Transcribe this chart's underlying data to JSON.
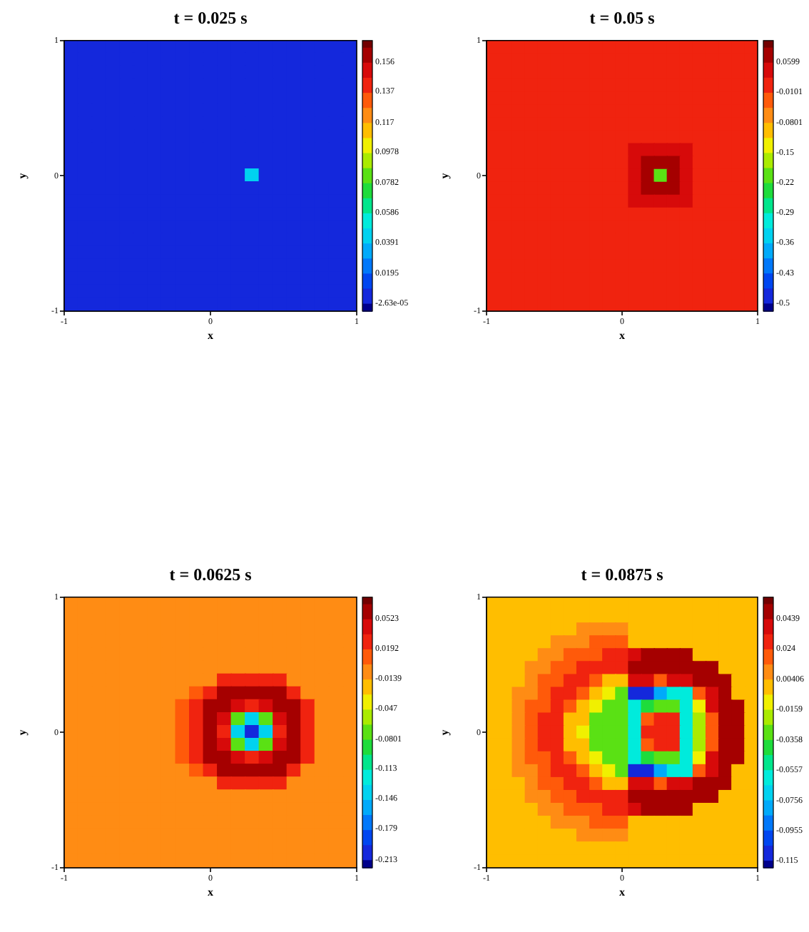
{
  "chart_data": [
    {
      "type": "heatmap",
      "title": "t = 0.025 s",
      "xlabel": "x",
      "ylabel": "y",
      "xlim": [
        -1,
        1
      ],
      "ylim": [
        -1,
        1
      ],
      "xticks": [
        -1,
        0,
        1
      ],
      "yticks": [
        -1,
        0,
        1
      ],
      "clim": [
        -0.0052,
        0.17
      ],
      "cticks": [
        {
          "value": -2.63e-05,
          "label": "-2.63e-05"
        },
        0.0195,
        0.0391,
        0.0586,
        0.0782,
        0.0978,
        0.117,
        0.137,
        0.156
      ],
      "cells": [
        [
          0.005,
          0.005,
          0.005,
          0.005,
          0.005,
          0.005,
          0.005,
          0.005,
          0.005,
          0.005,
          0.005,
          0.005,
          0.005,
          0.005,
          0.005,
          0.005,
          0.005,
          0.005,
          0.005,
          0.005,
          0.005
        ],
        [
          0.005,
          0.005,
          0.005,
          0.005,
          0.005,
          0.005,
          0.005,
          0.005,
          0.005,
          0.005,
          0.005,
          0.005,
          0.005,
          0.005,
          0.005,
          0.005,
          0.005,
          0.005,
          0.005,
          0.005,
          0.005
        ],
        [
          0.005,
          0.005,
          0.005,
          0.005,
          0.005,
          0.005,
          0.005,
          0.005,
          0.005,
          0.005,
          0.005,
          0.005,
          0.005,
          0.005,
          0.005,
          0.005,
          0.005,
          0.005,
          0.005,
          0.005,
          0.005
        ],
        [
          0.005,
          0.005,
          0.005,
          0.005,
          0.005,
          0.005,
          0.005,
          0.005,
          0.005,
          0.005,
          0.005,
          0.005,
          0.005,
          0.005,
          0.005,
          0.005,
          0.005,
          0.005,
          0.005,
          0.005,
          0.005
        ],
        [
          0.005,
          0.005,
          0.005,
          0.005,
          0.005,
          0.005,
          0.005,
          0.005,
          0.005,
          0.005,
          0.005,
          0.005,
          0.005,
          0.005,
          0.005,
          0.005,
          0.005,
          0.005,
          0.005,
          0.005,
          0.005
        ],
        [
          0.005,
          0.005,
          0.005,
          0.005,
          0.005,
          0.005,
          0.005,
          0.005,
          0.005,
          0.005,
          0.005,
          0.005,
          0.005,
          0.005,
          0.005,
          0.005,
          0.005,
          0.005,
          0.005,
          0.005,
          0.005
        ],
        [
          0.005,
          0.005,
          0.005,
          0.005,
          0.005,
          0.005,
          0.005,
          0.005,
          0.005,
          0.005,
          0.005,
          0.005,
          0.005,
          0.005,
          0.005,
          0.005,
          0.005,
          0.005,
          0.005,
          0.005,
          0.005
        ],
        [
          0.005,
          0.005,
          0.005,
          0.005,
          0.005,
          0.005,
          0.005,
          0.005,
          0.005,
          0.005,
          0.005,
          0.005,
          0.005,
          0.005,
          0.005,
          0.005,
          0.005,
          0.005,
          0.005,
          0.005,
          0.005
        ],
        [
          0.005,
          0.005,
          0.005,
          0.005,
          0.005,
          0.005,
          0.005,
          0.005,
          0.005,
          0.005,
          0.005,
          0.005,
          0.005,
          0.005,
          0.005,
          0.005,
          0.005,
          0.005,
          0.005,
          0.005,
          0.005
        ],
        [
          0.005,
          0.005,
          0.005,
          0.005,
          0.005,
          0.005,
          0.005,
          0.005,
          0.005,
          0.005,
          0.005,
          0.005,
          0.005,
          0.005,
          0.005,
          0.005,
          0.005,
          0.005,
          0.005,
          0.005,
          0.005
        ],
        [
          0.005,
          0.005,
          0.005,
          0.005,
          0.005,
          0.005,
          0.005,
          0.005,
          0.005,
          0.005,
          0.005,
          0.005,
          0.005,
          0.044,
          0.005,
          0.005,
          0.005,
          0.005,
          0.005,
          0.005,
          0.005
        ],
        [
          0.005,
          0.005,
          0.005,
          0.005,
          0.005,
          0.005,
          0.005,
          0.005,
          0.005,
          0.005,
          0.005,
          0.005,
          0.005,
          0.005,
          0.005,
          0.005,
          0.005,
          0.005,
          0.005,
          0.005,
          0.005
        ],
        [
          0.005,
          0.005,
          0.005,
          0.005,
          0.005,
          0.005,
          0.005,
          0.005,
          0.005,
          0.005,
          0.005,
          0.005,
          0.005,
          0.005,
          0.005,
          0.005,
          0.005,
          0.005,
          0.005,
          0.005,
          0.005
        ],
        [
          0.005,
          0.005,
          0.005,
          0.005,
          0.005,
          0.005,
          0.005,
          0.005,
          0.005,
          0.005,
          0.005,
          0.005,
          0.005,
          0.005,
          0.005,
          0.005,
          0.005,
          0.005,
          0.005,
          0.005,
          0.005
        ],
        [
          0.005,
          0.005,
          0.005,
          0.005,
          0.005,
          0.005,
          0.005,
          0.005,
          0.005,
          0.005,
          0.005,
          0.005,
          0.005,
          0.005,
          0.005,
          0.005,
          0.005,
          0.005,
          0.005,
          0.005,
          0.005
        ],
        [
          0.005,
          0.005,
          0.005,
          0.005,
          0.005,
          0.005,
          0.005,
          0.005,
          0.005,
          0.005,
          0.005,
          0.005,
          0.005,
          0.005,
          0.005,
          0.005,
          0.005,
          0.005,
          0.005,
          0.005,
          0.005
        ],
        [
          0.005,
          0.005,
          0.005,
          0.005,
          0.005,
          0.005,
          0.005,
          0.005,
          0.005,
          0.005,
          0.005,
          0.005,
          0.005,
          0.005,
          0.005,
          0.005,
          0.005,
          0.005,
          0.005,
          0.005,
          0.005
        ],
        [
          0.005,
          0.005,
          0.005,
          0.005,
          0.005,
          0.005,
          0.005,
          0.005,
          0.005,
          0.005,
          0.005,
          0.005,
          0.005,
          0.005,
          0.005,
          0.005,
          0.005,
          0.005,
          0.005,
          0.005,
          0.005
        ],
        [
          0.005,
          0.005,
          0.005,
          0.005,
          0.005,
          0.005,
          0.005,
          0.005,
          0.005,
          0.005,
          0.005,
          0.005,
          0.005,
          0.005,
          0.005,
          0.005,
          0.005,
          0.005,
          0.005,
          0.005,
          0.005
        ],
        [
          0.005,
          0.005,
          0.005,
          0.005,
          0.005,
          0.005,
          0.005,
          0.005,
          0.005,
          0.005,
          0.005,
          0.005,
          0.005,
          0.005,
          0.005,
          0.005,
          0.005,
          0.005,
          0.005,
          0.005,
          0.005
        ],
        [
          0.005,
          0.005,
          0.005,
          0.005,
          0.005,
          0.005,
          0.005,
          0.005,
          0.005,
          0.005,
          0.005,
          0.005,
          0.005,
          0.005,
          0.005,
          0.005,
          0.005,
          0.005,
          0.005,
          0.005,
          0.005
        ]
      ]
    },
    {
      "type": "heatmap",
      "title": "t = 0.05 s",
      "xlabel": "x",
      "ylabel": "y",
      "xlim": [
        -1,
        1
      ],
      "ylim": [
        -1,
        1
      ],
      "xticks": [
        -1,
        0,
        1
      ],
      "yticks": [
        -1,
        0,
        1
      ],
      "clim": [
        -0.519,
        0.11
      ],
      "cticks": [
        -0.5,
        -0.43,
        -0.36,
        -0.29,
        -0.22,
        -0.15,
        -0.0801,
        -0.0101,
        0.0599
      ],
      "cells": [
        [
          0.005,
          0.005,
          0.005,
          0.005,
          0.005,
          0.005,
          0.005,
          0.005,
          0.005,
          0.005,
          0.005,
          0.005,
          0.005,
          0.005,
          0.005,
          0.005,
          0.005,
          0.005,
          0.005,
          0.005,
          0.005
        ],
        [
          0.005,
          0.005,
          0.005,
          0.005,
          0.005,
          0.005,
          0.005,
          0.005,
          0.005,
          0.005,
          0.005,
          0.005,
          0.005,
          0.005,
          0.005,
          0.005,
          0.005,
          0.005,
          0.005,
          0.005,
          0.005
        ],
        [
          0.005,
          0.005,
          0.005,
          0.005,
          0.005,
          0.005,
          0.005,
          0.005,
          0.005,
          0.005,
          0.005,
          0.005,
          0.005,
          0.005,
          0.005,
          0.005,
          0.005,
          0.005,
          0.005,
          0.005,
          0.005
        ],
        [
          0.005,
          0.005,
          0.005,
          0.005,
          0.005,
          0.005,
          0.005,
          0.005,
          0.005,
          0.005,
          0.005,
          0.005,
          0.005,
          0.005,
          0.005,
          0.005,
          0.005,
          0.005,
          0.005,
          0.005,
          0.005
        ],
        [
          0.005,
          0.005,
          0.005,
          0.005,
          0.005,
          0.005,
          0.005,
          0.005,
          0.005,
          0.005,
          0.005,
          0.005,
          0.005,
          0.005,
          0.005,
          0.005,
          0.005,
          0.005,
          0.005,
          0.005,
          0.005
        ],
        [
          0.005,
          0.005,
          0.005,
          0.005,
          0.005,
          0.005,
          0.005,
          0.005,
          0.005,
          0.005,
          0.005,
          0.005,
          0.005,
          0.005,
          0.005,
          0.005,
          0.005,
          0.005,
          0.005,
          0.005,
          0.005
        ],
        [
          0.005,
          0.005,
          0.005,
          0.005,
          0.005,
          0.005,
          0.005,
          0.005,
          0.005,
          0.005,
          0.005,
          0.005,
          0.005,
          0.005,
          0.005,
          0.005,
          0.005,
          0.005,
          0.005,
          0.005,
          0.005
        ],
        [
          0.005,
          0.005,
          0.005,
          0.005,
          0.005,
          0.005,
          0.005,
          0.005,
          0.005,
          0.005,
          0.005,
          0.005,
          0.005,
          0.005,
          0.005,
          0.005,
          0.005,
          0.005,
          0.005,
          0.005,
          0.005
        ],
        [
          0.005,
          0.005,
          0.005,
          0.005,
          0.005,
          0.005,
          0.005,
          0.005,
          0.005,
          0.005,
          0.005,
          0.04,
          0.04,
          0.04,
          0.04,
          0.04,
          0.005,
          0.005,
          0.005,
          0.005,
          0.005
        ],
        [
          0.005,
          0.005,
          0.005,
          0.005,
          0.005,
          0.005,
          0.005,
          0.005,
          0.005,
          0.005,
          0.005,
          0.04,
          0.08,
          0.08,
          0.08,
          0.04,
          0.005,
          0.005,
          0.005,
          0.005,
          0.005
        ],
        [
          0.005,
          0.005,
          0.005,
          0.005,
          0.005,
          0.005,
          0.005,
          0.005,
          0.005,
          0.005,
          0.005,
          0.04,
          0.08,
          -0.2,
          0.08,
          0.04,
          0.005,
          0.005,
          0.005,
          0.005,
          0.005
        ],
        [
          0.005,
          0.005,
          0.005,
          0.005,
          0.005,
          0.005,
          0.005,
          0.005,
          0.005,
          0.005,
          0.005,
          0.04,
          0.08,
          0.08,
          0.08,
          0.04,
          0.005,
          0.005,
          0.005,
          0.005,
          0.005
        ],
        [
          0.005,
          0.005,
          0.005,
          0.005,
          0.005,
          0.005,
          0.005,
          0.005,
          0.005,
          0.005,
          0.005,
          0.04,
          0.04,
          0.04,
          0.04,
          0.04,
          0.005,
          0.005,
          0.005,
          0.005,
          0.005
        ],
        [
          0.005,
          0.005,
          0.005,
          0.005,
          0.005,
          0.005,
          0.005,
          0.005,
          0.005,
          0.005,
          0.005,
          0.005,
          0.005,
          0.005,
          0.005,
          0.005,
          0.005,
          0.005,
          0.005,
          0.005,
          0.005
        ],
        [
          0.005,
          0.005,
          0.005,
          0.005,
          0.005,
          0.005,
          0.005,
          0.005,
          0.005,
          0.005,
          0.005,
          0.005,
          0.005,
          0.005,
          0.005,
          0.005,
          0.005,
          0.005,
          0.005,
          0.005,
          0.005
        ],
        [
          0.005,
          0.005,
          0.005,
          0.005,
          0.005,
          0.005,
          0.005,
          0.005,
          0.005,
          0.005,
          0.005,
          0.005,
          0.005,
          0.005,
          0.005,
          0.005,
          0.005,
          0.005,
          0.005,
          0.005,
          0.005
        ],
        [
          0.005,
          0.005,
          0.005,
          0.005,
          0.005,
          0.005,
          0.005,
          0.005,
          0.005,
          0.005,
          0.005,
          0.005,
          0.005,
          0.005,
          0.005,
          0.005,
          0.005,
          0.005,
          0.005,
          0.005,
          0.005
        ],
        [
          0.005,
          0.005,
          0.005,
          0.005,
          0.005,
          0.005,
          0.005,
          0.005,
          0.005,
          0.005,
          0.005,
          0.005,
          0.005,
          0.005,
          0.005,
          0.005,
          0.005,
          0.005,
          0.005,
          0.005,
          0.005
        ],
        [
          0.005,
          0.005,
          0.005,
          0.005,
          0.005,
          0.005,
          0.005,
          0.005,
          0.005,
          0.005,
          0.005,
          0.005,
          0.005,
          0.005,
          0.005,
          0.005,
          0.005,
          0.005,
          0.005,
          0.005,
          0.005
        ],
        [
          0.005,
          0.005,
          0.005,
          0.005,
          0.005,
          0.005,
          0.005,
          0.005,
          0.005,
          0.005,
          0.005,
          0.005,
          0.005,
          0.005,
          0.005,
          0.005,
          0.005,
          0.005,
          0.005,
          0.005,
          0.005
        ],
        [
          0.005,
          0.005,
          0.005,
          0.005,
          0.005,
          0.005,
          0.005,
          0.005,
          0.005,
          0.005,
          0.005,
          0.005,
          0.005,
          0.005,
          0.005,
          0.005,
          0.005,
          0.005,
          0.005,
          0.005,
          0.005
        ]
      ]
    },
    {
      "type": "heatmap",
      "title": "t = 0.0625 s",
      "xlabel": "x",
      "ylabel": "y",
      "xlim": [
        -1,
        1
      ],
      "ylim": [
        -1,
        1
      ],
      "xticks": [
        -1,
        0,
        1
      ],
      "yticks": [
        -1,
        0,
        1
      ],
      "clim": [
        -0.222,
        0.076
      ],
      "cticks": [
        -0.213,
        -0.179,
        -0.146,
        -0.113,
        -0.0801,
        -0.047,
        -0.0139,
        0.0192,
        0.0523
      ],
      "cells": [
        [
          -0.005,
          -0.005,
          -0.005,
          -0.005,
          -0.005,
          -0.005,
          -0.005,
          -0.005,
          -0.005,
          -0.005,
          -0.005,
          -0.005,
          -0.005,
          -0.005,
          -0.005,
          -0.005,
          -0.005,
          -0.005,
          -0.005,
          -0.005,
          -0.005
        ],
        [
          -0.005,
          -0.005,
          -0.005,
          -0.005,
          -0.005,
          -0.005,
          -0.005,
          -0.005,
          -0.005,
          -0.005,
          -0.005,
          -0.005,
          -0.005,
          -0.005,
          -0.005,
          -0.005,
          -0.005,
          -0.005,
          -0.005,
          -0.005,
          -0.005
        ],
        [
          -0.005,
          -0.005,
          -0.005,
          -0.005,
          -0.005,
          -0.005,
          -0.005,
          -0.005,
          -0.005,
          -0.005,
          -0.005,
          -0.005,
          -0.005,
          -0.005,
          -0.005,
          -0.005,
          -0.005,
          -0.005,
          -0.005,
          -0.005,
          -0.005
        ],
        [
          -0.005,
          -0.005,
          -0.005,
          -0.005,
          -0.005,
          -0.005,
          -0.005,
          -0.005,
          -0.005,
          -0.005,
          -0.005,
          -0.005,
          -0.005,
          -0.005,
          -0.005,
          -0.005,
          -0.005,
          -0.005,
          -0.005,
          -0.005,
          -0.005
        ],
        [
          -0.005,
          -0.005,
          -0.005,
          -0.005,
          -0.005,
          -0.005,
          -0.005,
          -0.005,
          -0.005,
          -0.005,
          -0.005,
          -0.005,
          -0.005,
          -0.005,
          -0.005,
          -0.005,
          -0.005,
          -0.005,
          -0.005,
          -0.005,
          -0.005
        ],
        [
          -0.005,
          -0.005,
          -0.005,
          -0.005,
          -0.005,
          -0.005,
          -0.005,
          -0.005,
          -0.005,
          -0.005,
          -0.005,
          -0.005,
          -0.005,
          -0.005,
          -0.005,
          -0.005,
          -0.005,
          -0.005,
          -0.005,
          -0.005,
          -0.005
        ],
        [
          -0.005,
          -0.005,
          -0.005,
          -0.005,
          -0.005,
          -0.005,
          -0.005,
          -0.005,
          -0.005,
          -0.005,
          -0.005,
          0.03,
          0.03,
          0.03,
          0.03,
          0.03,
          -0.005,
          -0.005,
          -0.005,
          -0.005,
          -0.005
        ],
        [
          -0.005,
          -0.005,
          -0.005,
          -0.005,
          -0.005,
          -0.005,
          -0.005,
          -0.005,
          -0.005,
          0.01,
          0.03,
          0.06,
          0.06,
          0.06,
          0.06,
          0.06,
          0.03,
          -0.005,
          -0.005,
          -0.005,
          -0.005
        ],
        [
          -0.005,
          -0.005,
          -0.005,
          -0.005,
          -0.005,
          -0.005,
          -0.005,
          -0.005,
          0.01,
          0.03,
          0.06,
          0.06,
          0.045,
          0.03,
          0.045,
          0.06,
          0.06,
          0.03,
          -0.005,
          -0.005,
          -0.005
        ],
        [
          -0.005,
          -0.005,
          -0.005,
          -0.005,
          -0.005,
          -0.005,
          -0.005,
          -0.005,
          0.01,
          0.03,
          0.06,
          0.045,
          -0.07,
          -0.14,
          -0.07,
          0.045,
          0.06,
          0.03,
          -0.005,
          -0.005,
          -0.005
        ],
        [
          -0.005,
          -0.005,
          -0.005,
          -0.005,
          -0.005,
          -0.005,
          -0.005,
          -0.005,
          0.01,
          0.03,
          0.06,
          0.03,
          -0.14,
          -0.2,
          -0.14,
          0.03,
          0.06,
          0.03,
          -0.005,
          -0.005,
          -0.005
        ],
        [
          -0.005,
          -0.005,
          -0.005,
          -0.005,
          -0.005,
          -0.005,
          -0.005,
          -0.005,
          0.01,
          0.03,
          0.06,
          0.045,
          -0.07,
          -0.14,
          -0.07,
          0.045,
          0.06,
          0.03,
          -0.005,
          -0.005,
          -0.005
        ],
        [
          -0.005,
          -0.005,
          -0.005,
          -0.005,
          -0.005,
          -0.005,
          -0.005,
          -0.005,
          0.01,
          0.03,
          0.06,
          0.06,
          0.045,
          0.03,
          0.045,
          0.06,
          0.06,
          0.03,
          -0.005,
          -0.005,
          -0.005
        ],
        [
          -0.005,
          -0.005,
          -0.005,
          -0.005,
          -0.005,
          -0.005,
          -0.005,
          -0.005,
          -0.005,
          0.01,
          0.03,
          0.06,
          0.06,
          0.06,
          0.06,
          0.06,
          0.03,
          -0.005,
          -0.005,
          -0.005,
          -0.005
        ],
        [
          -0.005,
          -0.005,
          -0.005,
          -0.005,
          -0.005,
          -0.005,
          -0.005,
          -0.005,
          -0.005,
          -0.005,
          -0.005,
          0.03,
          0.03,
          0.03,
          0.03,
          0.03,
          -0.005,
          -0.005,
          -0.005,
          -0.005,
          -0.005
        ],
        [
          -0.005,
          -0.005,
          -0.005,
          -0.005,
          -0.005,
          -0.005,
          -0.005,
          -0.005,
          -0.005,
          -0.005,
          -0.005,
          -0.005,
          -0.005,
          -0.005,
          -0.005,
          -0.005,
          -0.005,
          -0.005,
          -0.005,
          -0.005,
          -0.005
        ],
        [
          -0.005,
          -0.005,
          -0.005,
          -0.005,
          -0.005,
          -0.005,
          -0.005,
          -0.005,
          -0.005,
          -0.005,
          -0.005,
          -0.005,
          -0.005,
          -0.005,
          -0.005,
          -0.005,
          -0.005,
          -0.005,
          -0.005,
          -0.005,
          -0.005
        ],
        [
          -0.005,
          -0.005,
          -0.005,
          -0.005,
          -0.005,
          -0.005,
          -0.005,
          -0.005,
          -0.005,
          -0.005,
          -0.005,
          -0.005,
          -0.005,
          -0.005,
          -0.005,
          -0.005,
          -0.005,
          -0.005,
          -0.005,
          -0.005,
          -0.005
        ],
        [
          -0.005,
          -0.005,
          -0.005,
          -0.005,
          -0.005,
          -0.005,
          -0.005,
          -0.005,
          -0.005,
          -0.005,
          -0.005,
          -0.005,
          -0.005,
          -0.005,
          -0.005,
          -0.005,
          -0.005,
          -0.005,
          -0.005,
          -0.005,
          -0.005
        ],
        [
          -0.005,
          -0.005,
          -0.005,
          -0.005,
          -0.005,
          -0.005,
          -0.005,
          -0.005,
          -0.005,
          -0.005,
          -0.005,
          -0.005,
          -0.005,
          -0.005,
          -0.005,
          -0.005,
          -0.005,
          -0.005,
          -0.005,
          -0.005,
          -0.005
        ],
        [
          -0.005,
          -0.005,
          -0.005,
          -0.005,
          -0.005,
          -0.005,
          -0.005,
          -0.005,
          -0.005,
          -0.005,
          -0.005,
          -0.005,
          -0.005,
          -0.005,
          -0.005,
          -0.005,
          -0.005,
          -0.005,
          -0.005,
          -0.005,
          -0.005
        ]
      ]
    },
    {
      "type": "heatmap",
      "title": "t = 0.0875 s",
      "xlabel": "x",
      "ylabel": "y",
      "xlim": [
        -1,
        1
      ],
      "ylim": [
        -1,
        1
      ],
      "xticks": [
        -1,
        0,
        1
      ],
      "yticks": [
        -1,
        0,
        1
      ],
      "clim": [
        -0.12,
        0.058
      ],
      "cticks": [
        -0.115,
        -0.0955,
        -0.0756,
        -0.0557,
        -0.0358,
        -0.0159,
        0.00406,
        0.024,
        0.0439
      ],
      "cells": [
        [
          0,
          0,
          0,
          0,
          0,
          0,
          0,
          0,
          0,
          0,
          0,
          0,
          0,
          0,
          0,
          0,
          0,
          0,
          0,
          0,
          0
        ],
        [
          0,
          0,
          0,
          0,
          0,
          0,
          0,
          0,
          0,
          0,
          0,
          0,
          0,
          0,
          0,
          0,
          0,
          0,
          0,
          0,
          0
        ],
        [
          0,
          0,
          0,
          0,
          0,
          0,
          0,
          0.009,
          0.009,
          0.009,
          0.009,
          0,
          0,
          0,
          0,
          0,
          0,
          0,
          0,
          0,
          0
        ],
        [
          0,
          0,
          0,
          0,
          0,
          0.009,
          0.009,
          0.009,
          0.019,
          0.019,
          0.019,
          0,
          0,
          0,
          0,
          0,
          0,
          0,
          0,
          0,
          0
        ],
        [
          0,
          0,
          0,
          0,
          0.009,
          0.009,
          0.019,
          0.019,
          0.019,
          0.029,
          0.029,
          0.039,
          0.049,
          0.049,
          0.049,
          0.049,
          0,
          0,
          0,
          0,
          0
        ],
        [
          0,
          0,
          0,
          0.009,
          0.009,
          0.019,
          0.019,
          0.029,
          0.029,
          0.029,
          0.029,
          0.049,
          0.049,
          0.049,
          0.049,
          0.049,
          0.049,
          0.049,
          0,
          0,
          0
        ],
        [
          0,
          0,
          0,
          0.009,
          0.019,
          0.019,
          0.029,
          0.029,
          0.019,
          0,
          0,
          0.035,
          0.035,
          0.019,
          0.035,
          0.035,
          0.049,
          0.049,
          0.049,
          0,
          0
        ],
        [
          0,
          0,
          0.009,
          0.009,
          0.019,
          0.029,
          0.029,
          0.019,
          0,
          -0.01,
          -0.03,
          -0.11,
          -0.11,
          -0.08,
          -0.06,
          -0.06,
          0.019,
          0.035,
          0.049,
          0,
          0
        ],
        [
          0,
          0,
          0.009,
          0.019,
          0.019,
          0.029,
          0.019,
          0,
          -0.01,
          -0.03,
          -0.03,
          -0.06,
          -0.04,
          -0.03,
          -0.03,
          -0.06,
          -0.01,
          0.035,
          0.049,
          0.049,
          0
        ],
        [
          0,
          0,
          0.009,
          0.019,
          0.029,
          0.029,
          0,
          0,
          -0.03,
          -0.03,
          -0.03,
          -0.06,
          0.019,
          0.029,
          0.029,
          -0.06,
          -0.02,
          0.019,
          0.049,
          0.049,
          0
        ],
        [
          0,
          0,
          0.009,
          0.019,
          0.029,
          0.029,
          0,
          -0.01,
          -0.03,
          -0.03,
          -0.03,
          -0.06,
          0.029,
          0.029,
          0.029,
          -0.06,
          -0.02,
          0.019,
          0.049,
          0.049,
          0
        ],
        [
          0,
          0,
          0.009,
          0.019,
          0.029,
          0.029,
          0,
          0,
          -0.03,
          -0.03,
          -0.03,
          -0.06,
          0.019,
          0.029,
          0.029,
          -0.06,
          -0.02,
          0.019,
          0.049,
          0.049,
          0
        ],
        [
          0,
          0,
          0.009,
          0.019,
          0.019,
          0.029,
          0.019,
          0,
          -0.01,
          -0.03,
          -0.03,
          -0.06,
          -0.04,
          -0.03,
          -0.03,
          -0.06,
          -0.01,
          0.035,
          0.049,
          0.049,
          0
        ],
        [
          0,
          0,
          0.009,
          0.009,
          0.019,
          0.029,
          0.029,
          0.019,
          0,
          -0.01,
          -0.03,
          -0.11,
          -0.11,
          -0.08,
          -0.06,
          -0.06,
          0.019,
          0.035,
          0.049,
          0,
          0
        ],
        [
          0,
          0,
          0,
          0.009,
          0.019,
          0.019,
          0.029,
          0.029,
          0.019,
          0,
          0,
          0.035,
          0.035,
          0.019,
          0.035,
          0.035,
          0.049,
          0.049,
          0.049,
          0,
          0
        ],
        [
          0,
          0,
          0,
          0.009,
          0.009,
          0.019,
          0.019,
          0.029,
          0.029,
          0.029,
          0.029,
          0.049,
          0.049,
          0.049,
          0.049,
          0.049,
          0.049,
          0.049,
          0,
          0,
          0
        ],
        [
          0,
          0,
          0,
          0,
          0.009,
          0.009,
          0.019,
          0.019,
          0.019,
          0.029,
          0.029,
          0.039,
          0.049,
          0.049,
          0.049,
          0.049,
          0,
          0,
          0,
          0,
          0
        ],
        [
          0,
          0,
          0,
          0,
          0,
          0.009,
          0.009,
          0.009,
          0.019,
          0.019,
          0.019,
          0,
          0,
          0,
          0,
          0,
          0,
          0,
          0,
          0,
          0
        ],
        [
          0,
          0,
          0,
          0,
          0,
          0,
          0,
          0.009,
          0.009,
          0.009,
          0.009,
          0,
          0,
          0,
          0,
          0,
          0,
          0,
          0,
          0,
          0
        ],
        [
          0,
          0,
          0,
          0,
          0,
          0,
          0,
          0,
          0,
          0,
          0,
          0,
          0,
          0,
          0,
          0,
          0,
          0,
          0,
          0,
          0
        ],
        [
          0,
          0,
          0,
          0,
          0,
          0,
          0,
          0,
          0,
          0,
          0,
          0,
          0,
          0,
          0,
          0,
          0,
          0,
          0,
          0,
          0
        ]
      ]
    }
  ]
}
